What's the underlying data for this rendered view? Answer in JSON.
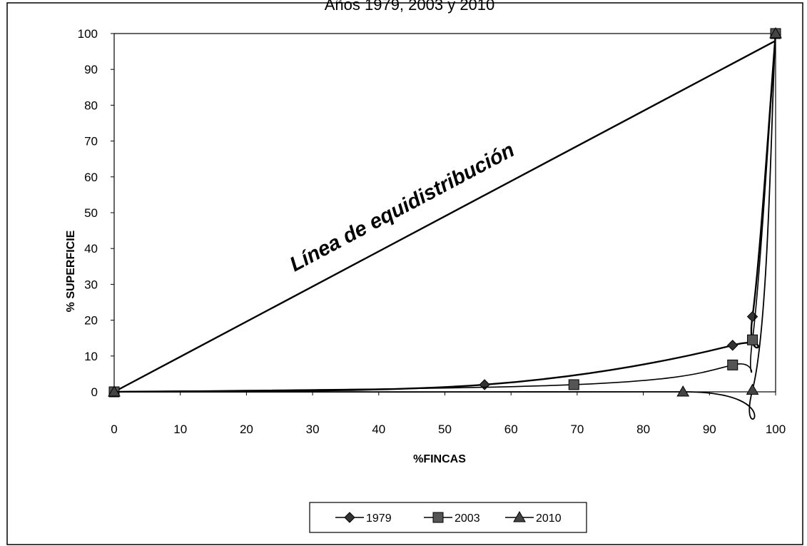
{
  "chart_data": {
    "type": "line",
    "title": "Años 1979, 2003 y 2010",
    "xlabel": "%FINCAS",
    "ylabel": "% SUPERFICIE",
    "xlim": [
      0,
      100
    ],
    "ylim": [
      0,
      100
    ],
    "xticks": [
      "0",
      "10",
      "20",
      "30",
      "40",
      "50",
      "60",
      "70",
      "80",
      "90",
      "100"
    ],
    "yticks": [
      "0",
      "10",
      "20",
      "30",
      "40",
      "50",
      "60",
      "70",
      "80",
      "90",
      "100"
    ],
    "annotation": "Línea de equidistribución",
    "equidistribution": [
      [
        0,
        0
      ],
      [
        100,
        98
      ]
    ],
    "legend_position": "bottom",
    "grid": false,
    "series": [
      {
        "name": "1979",
        "marker": "diamond",
        "points": [
          [
            0,
            0
          ],
          [
            56,
            2
          ],
          [
            93.5,
            13
          ],
          [
            96.5,
            21
          ],
          [
            100,
            100
          ]
        ]
      },
      {
        "name": "2003",
        "marker": "square",
        "points": [
          [
            0,
            0
          ],
          [
            69.5,
            2
          ],
          [
            93.5,
            7.5
          ],
          [
            96.5,
            14.5
          ],
          [
            100,
            100
          ]
        ]
      },
      {
        "name": "2010",
        "marker": "triangle",
        "points": [
          [
            0,
            0
          ],
          [
            86,
            0
          ],
          [
            96.5,
            0.5
          ],
          [
            100,
            100
          ]
        ]
      }
    ]
  }
}
